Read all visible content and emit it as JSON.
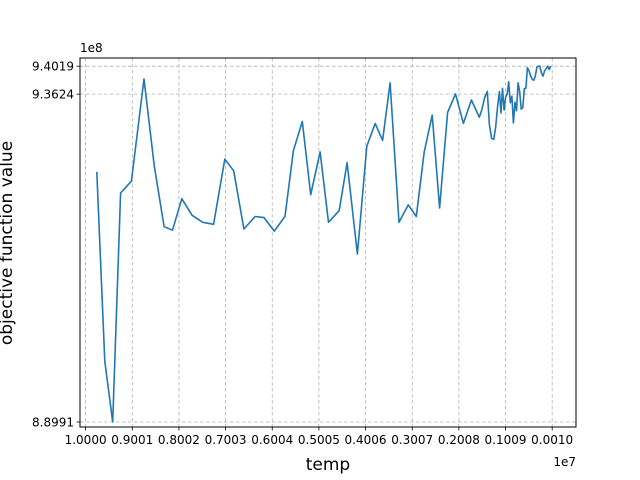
{
  "chart_data": {
    "type": "line",
    "xlabel": "temp",
    "ylabel": "objective function value",
    "x_offset_label": "1e7",
    "y_offset_label": "1e8",
    "grid": true,
    "series_color": "#1f77b4",
    "grid_color": "#b0b0b0",
    "xlim": [
      -0.12,
      10.5
    ],
    "ylim": [
      8.892,
      9.4135
    ],
    "x_ticks": [
      {
        "value": 0.0,
        "label": "1.0000"
      },
      {
        "value": 0.999,
        "label": "0.9001"
      },
      {
        "value": 1.998,
        "label": "0.8002"
      },
      {
        "value": 2.997,
        "label": "0.7003"
      },
      {
        "value": 3.996,
        "label": "0.6004"
      },
      {
        "value": 4.995,
        "label": "0.5005"
      },
      {
        "value": 5.994,
        "label": "0.4006"
      },
      {
        "value": 6.993,
        "label": "0.3007"
      },
      {
        "value": 7.992,
        "label": "0.2008"
      },
      {
        "value": 8.991,
        "label": "0.1009"
      },
      {
        "value": 9.99,
        "label": "0.0010"
      }
    ],
    "y_ticks": [
      {
        "value": 8.8991,
        "label": "8.8991"
      },
      {
        "value": 9.3624,
        "label": "9.3624"
      },
      {
        "value": 9.4019,
        "label": "9.4019"
      }
    ],
    "x": [
      0.24,
      0.41,
      0.58,
      0.75,
      0.98,
      1.25,
      1.47,
      1.68,
      1.86,
      2.06,
      2.28,
      2.51,
      2.74,
      2.98,
      3.17,
      3.39,
      3.63,
      3.82,
      4.04,
      4.27,
      4.45,
      4.64,
      4.82,
      5.02,
      5.2,
      5.43,
      5.6,
      5.82,
      6.02,
      6.2,
      6.36,
      6.52,
      6.71,
      6.91,
      7.08,
      7.25,
      7.42,
      7.58,
      7.75,
      7.92,
      8.09,
      8.26,
      8.43,
      8.6,
      8.74,
      8.86,
      8.96,
      9.06,
      9.16,
      9.26,
      9.36,
      9.46,
      9.56,
      9.66,
      9.76,
      9.86,
      9.96
    ],
    "y": [
      9.2525,
      8.9849,
      8.8991,
      9.2229,
      9.2394,
      9.3838,
      9.2607,
      9.1752,
      9.1702,
      9.2147,
      9.1912,
      9.1813,
      9.1785,
      9.2706,
      9.2541,
      9.1718,
      9.1895,
      9.1879,
      9.1689,
      9.1896,
      9.2826,
      9.3237,
      9.2203,
      9.2808,
      9.1813,
      9.1978,
      9.2657,
      9.1363,
      9.2888,
      9.3209,
      9.297,
      9.3785,
      9.1813,
      9.2059,
      9.1895,
      9.2806,
      9.3326,
      9.2015,
      9.3365,
      9.3628,
      9.3211,
      9.3541,
      9.3298,
      9.3661,
      9.2986,
      9.366,
      9.3398,
      9.3798,
      9.3218,
      9.3785,
      9.3434,
      9.3996,
      9.3837,
      9.4,
      9.3924,
      9.3983,
      9.4019
    ],
    "noise_start_x": 8.3
  }
}
